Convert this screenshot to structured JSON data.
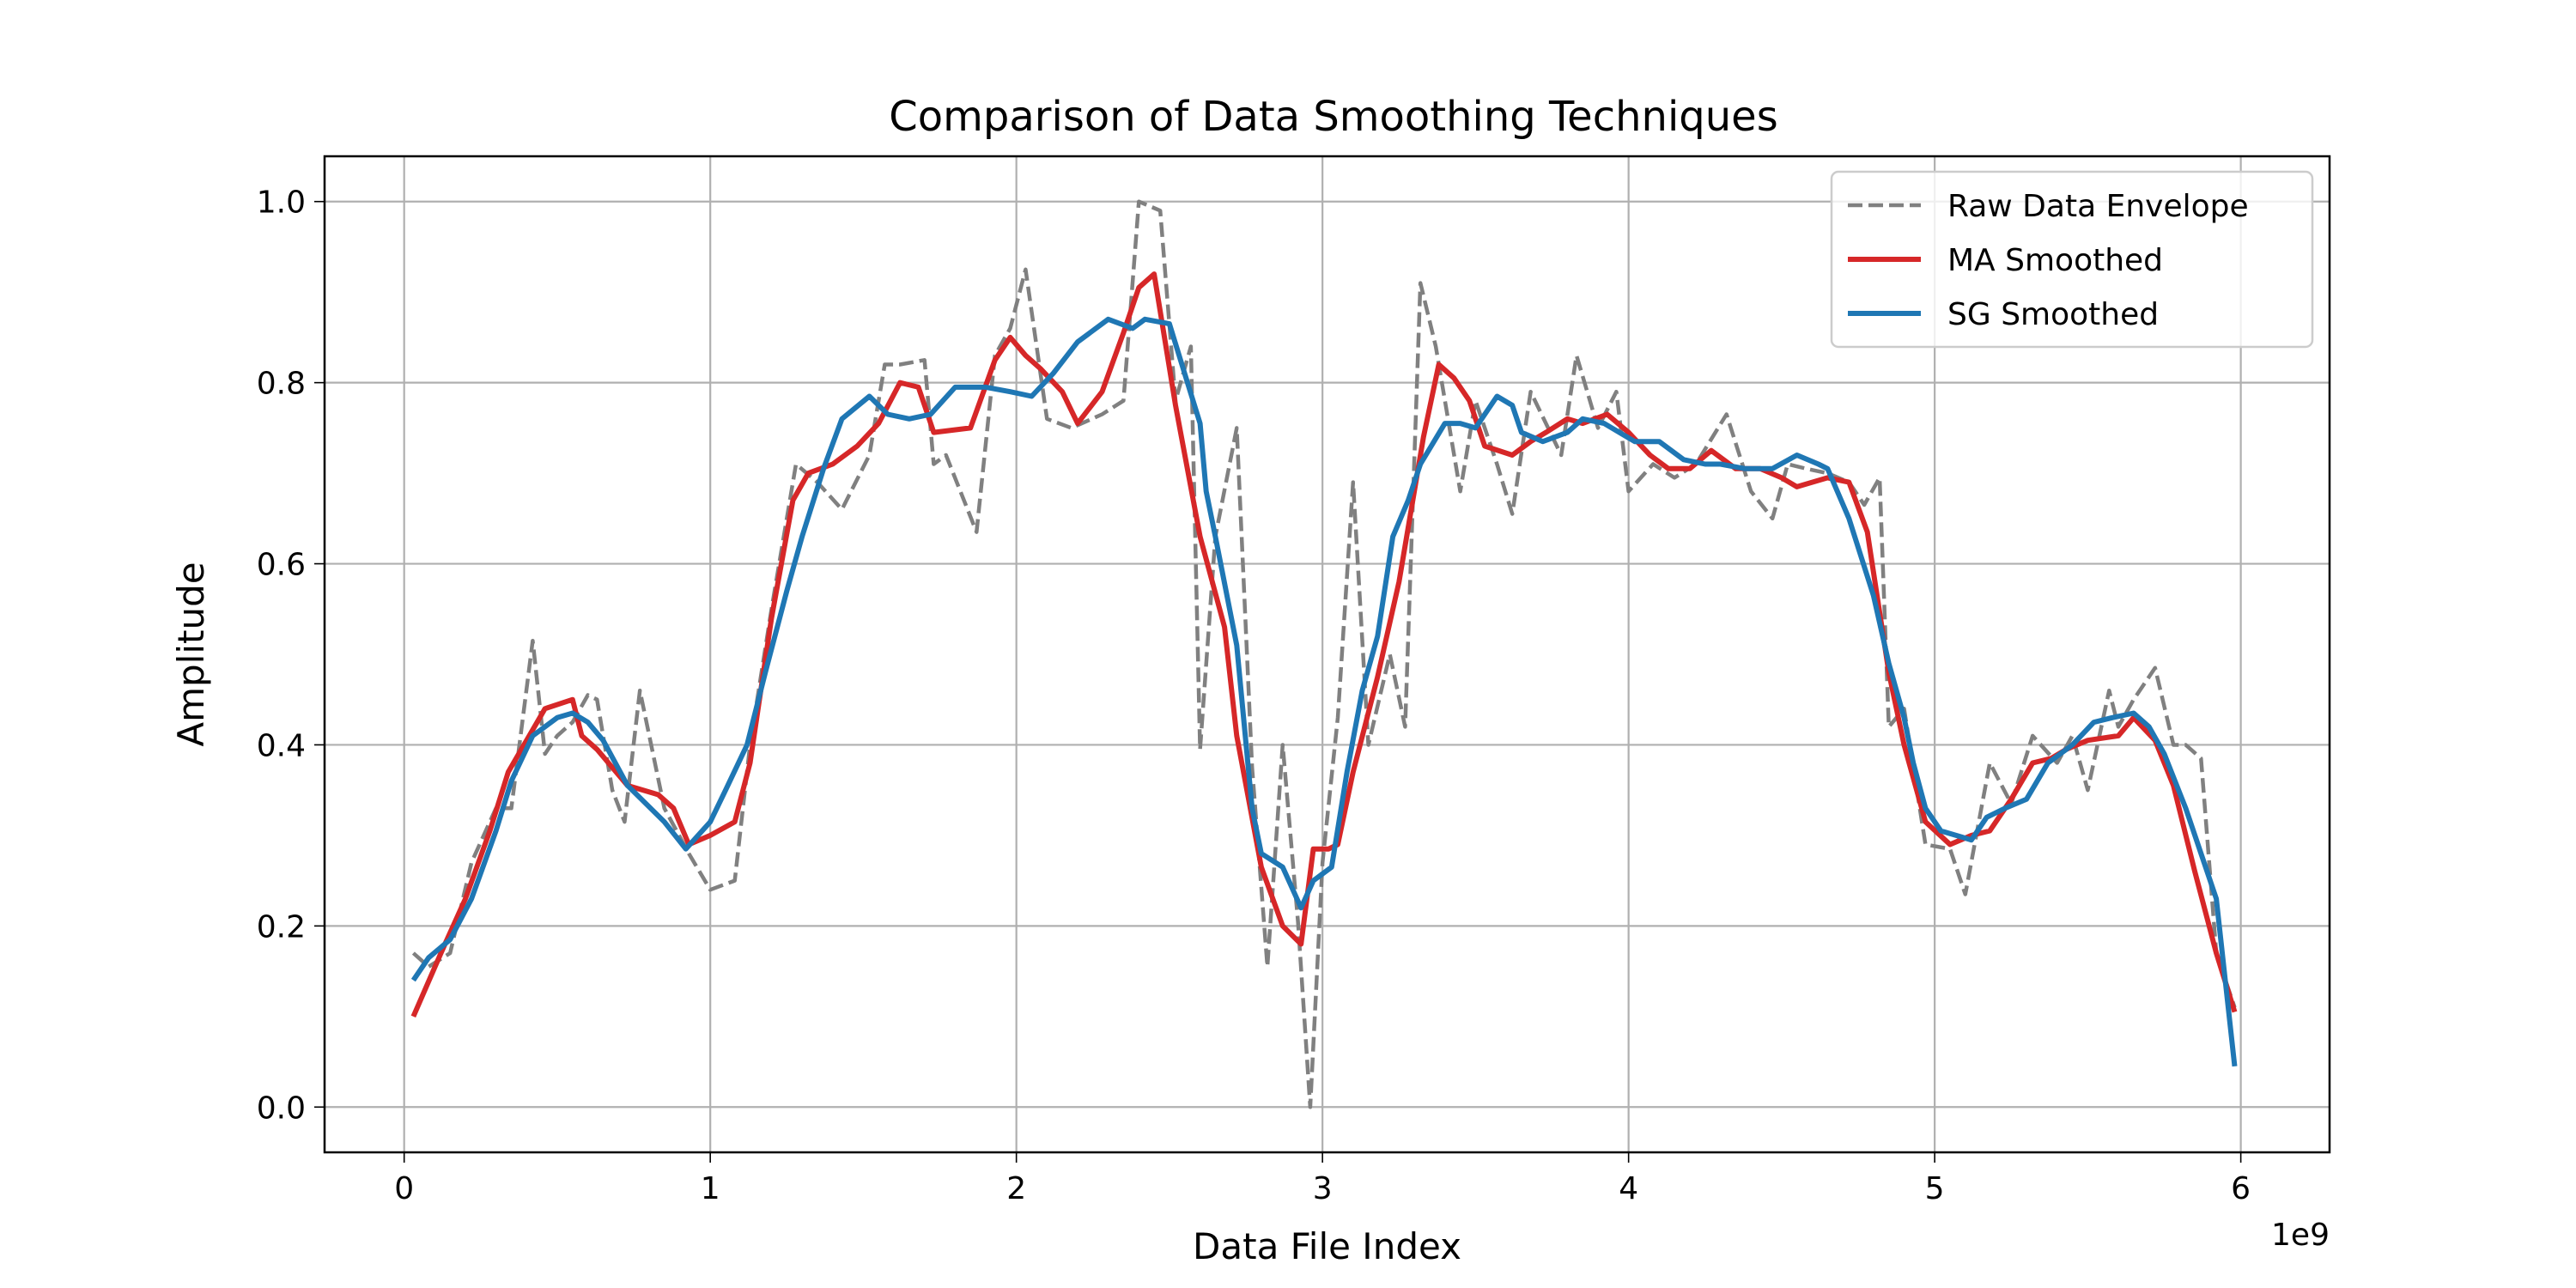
{
  "chart_data": {
    "type": "line",
    "title": "Comparison of Data Smoothing Techniques",
    "xlabel": "Data File Index",
    "ylabel": "Amplitude",
    "x_offset_label": "1e9",
    "xlim": [
      -0.26,
      6.29
    ],
    "ylim": [
      -0.05,
      1.05
    ],
    "x_ticks": [
      0,
      1,
      2,
      3,
      4,
      5,
      6
    ],
    "x_tick_labels": [
      "0",
      "1",
      "2",
      "3",
      "4",
      "5",
      "6"
    ],
    "y_ticks": [
      0.0,
      0.2,
      0.4,
      0.6,
      0.8,
      1.0
    ],
    "y_tick_labels": [
      "0.0",
      "0.2",
      "0.4",
      "0.6",
      "0.8",
      "1.0"
    ],
    "grid": true,
    "legend_position": "top-right",
    "series": [
      {
        "name": "Raw Data Envelope",
        "color": "#808080",
        "style": "dashed",
        "x": [
          0.03,
          0.08,
          0.15,
          0.22,
          0.3,
          0.35,
          0.42,
          0.46,
          0.5,
          0.55,
          0.6,
          0.63,
          0.68,
          0.72,
          0.77,
          0.85,
          0.93,
          1.0,
          1.08,
          1.13,
          1.2,
          1.28,
          1.35,
          1.43,
          1.52,
          1.57,
          1.62,
          1.7,
          1.73,
          1.77,
          1.87,
          1.93,
          1.98,
          2.03,
          2.1,
          2.18,
          2.28,
          2.35,
          2.4,
          2.47,
          2.52,
          2.57,
          2.6,
          2.65,
          2.72,
          2.77,
          2.82,
          2.87,
          2.92,
          2.96,
          3.0,
          3.05,
          3.1,
          3.15,
          3.22,
          3.27,
          3.32,
          3.37,
          3.45,
          3.5,
          3.57,
          3.62,
          3.68,
          3.78,
          3.83,
          3.9,
          3.96,
          4.0,
          4.08,
          4.15,
          4.22,
          4.32,
          4.4,
          4.47,
          4.52,
          4.58,
          4.65,
          4.72,
          4.77,
          4.82,
          4.85,
          4.9,
          4.97,
          5.05,
          5.1,
          5.18,
          5.25,
          5.32,
          5.4,
          5.45,
          5.5,
          5.57,
          5.6,
          5.65,
          5.72,
          5.78,
          5.82,
          5.87,
          5.92,
          5.98
        ],
        "y": [
          0.17,
          0.155,
          0.17,
          0.27,
          0.33,
          0.33,
          0.515,
          0.39,
          0.41,
          0.425,
          0.455,
          0.45,
          0.35,
          0.315,
          0.46,
          0.33,
          0.28,
          0.24,
          0.25,
          0.4,
          0.55,
          0.71,
          0.69,
          0.66,
          0.72,
          0.82,
          0.82,
          0.825,
          0.71,
          0.72,
          0.635,
          0.83,
          0.86,
          0.925,
          0.76,
          0.75,
          0.765,
          0.78,
          1.0,
          0.99,
          0.78,
          0.84,
          0.395,
          0.63,
          0.75,
          0.375,
          0.155,
          0.4,
          0.205,
          0.0,
          0.27,
          0.43,
          0.69,
          0.4,
          0.5,
          0.42,
          0.91,
          0.84,
          0.68,
          0.78,
          0.71,
          0.655,
          0.79,
          0.72,
          0.83,
          0.75,
          0.79,
          0.68,
          0.71,
          0.695,
          0.71,
          0.765,
          0.68,
          0.65,
          0.71,
          0.705,
          0.7,
          0.69,
          0.665,
          0.695,
          0.42,
          0.44,
          0.29,
          0.285,
          0.235,
          0.38,
          0.335,
          0.41,
          0.38,
          0.41,
          0.35,
          0.46,
          0.42,
          0.45,
          0.485,
          0.4,
          0.4,
          0.385,
          0.17,
          0.11
        ]
      },
      {
        "name": "MA Smoothed",
        "color": "#d62728",
        "style": "solid",
        "x": [
          0.03,
          0.12,
          0.2,
          0.28,
          0.34,
          0.46,
          0.55,
          0.58,
          0.63,
          0.73,
          0.83,
          0.88,
          0.93,
          1.0,
          1.08,
          1.13,
          1.2,
          1.27,
          1.32,
          1.4,
          1.48,
          1.55,
          1.62,
          1.68,
          1.73,
          1.85,
          1.93,
          1.98,
          2.03,
          2.08,
          2.15,
          2.2,
          2.28,
          2.35,
          2.4,
          2.45,
          2.52,
          2.6,
          2.68,
          2.72,
          2.8,
          2.87,
          2.93,
          2.97,
          3.02,
          3.05,
          3.1,
          3.18,
          3.25,
          3.33,
          3.38,
          3.43,
          3.48,
          3.53,
          3.62,
          3.68,
          3.73,
          3.8,
          3.85,
          3.93,
          4.0,
          4.07,
          4.13,
          4.2,
          4.27,
          4.35,
          4.43,
          4.5,
          4.55,
          4.6,
          4.65,
          4.72,
          4.78,
          4.85,
          4.9,
          4.97,
          5.05,
          5.12,
          5.18,
          5.25,
          5.32,
          5.38,
          5.43,
          5.5,
          5.6,
          5.65,
          5.72,
          5.78,
          5.85,
          5.92,
          5.98
        ],
        "y": [
          0.1,
          0.17,
          0.23,
          0.305,
          0.37,
          0.44,
          0.45,
          0.41,
          0.395,
          0.355,
          0.345,
          0.33,
          0.29,
          0.3,
          0.315,
          0.38,
          0.54,
          0.67,
          0.7,
          0.71,
          0.73,
          0.755,
          0.8,
          0.795,
          0.745,
          0.75,
          0.825,
          0.85,
          0.83,
          0.815,
          0.79,
          0.755,
          0.79,
          0.855,
          0.905,
          0.92,
          0.775,
          0.63,
          0.53,
          0.41,
          0.265,
          0.2,
          0.18,
          0.285,
          0.285,
          0.29,
          0.37,
          0.475,
          0.58,
          0.74,
          0.82,
          0.805,
          0.78,
          0.73,
          0.72,
          0.735,
          0.745,
          0.76,
          0.755,
          0.765,
          0.745,
          0.72,
          0.705,
          0.705,
          0.725,
          0.705,
          0.705,
          0.695,
          0.685,
          0.69,
          0.695,
          0.69,
          0.635,
          0.48,
          0.4,
          0.315,
          0.29,
          0.3,
          0.305,
          0.34,
          0.38,
          0.385,
          0.395,
          0.405,
          0.41,
          0.43,
          0.405,
          0.355,
          0.26,
          0.17,
          0.105
        ]
      },
      {
        "name": "SG Smoothed",
        "color": "#1f77b4",
        "style": "solid",
        "x": [
          0.03,
          0.08,
          0.15,
          0.22,
          0.3,
          0.35,
          0.42,
          0.5,
          0.55,
          0.6,
          0.65,
          0.73,
          0.85,
          0.92,
          1.0,
          1.05,
          1.12,
          1.18,
          1.25,
          1.3,
          1.37,
          1.43,
          1.52,
          1.58,
          1.65,
          1.72,
          1.8,
          1.9,
          1.98,
          2.05,
          2.12,
          2.2,
          2.3,
          2.38,
          2.42,
          2.5,
          2.55,
          2.6,
          2.62,
          2.65,
          2.72,
          2.77,
          2.8,
          2.87,
          2.93,
          2.97,
          3.03,
          3.08,
          3.13,
          3.18,
          3.23,
          3.28,
          3.32,
          3.4,
          3.45,
          3.5,
          3.57,
          3.62,
          3.65,
          3.72,
          3.8,
          3.85,
          3.92,
          4.02,
          4.1,
          4.18,
          4.25,
          4.3,
          4.38,
          4.43,
          4.47,
          4.55,
          4.62,
          4.65,
          4.72,
          4.8,
          4.85,
          4.9,
          4.93,
          4.97,
          5.02,
          5.07,
          5.12,
          5.17,
          5.23,
          5.3,
          5.37,
          5.45,
          5.52,
          5.58,
          5.65,
          5.7,
          5.75,
          5.82,
          5.87,
          5.92,
          5.98
        ],
        "y": [
          0.14,
          0.165,
          0.185,
          0.23,
          0.305,
          0.36,
          0.41,
          0.43,
          0.435,
          0.425,
          0.405,
          0.355,
          0.315,
          0.285,
          0.315,
          0.35,
          0.4,
          0.48,
          0.57,
          0.63,
          0.705,
          0.76,
          0.785,
          0.765,
          0.76,
          0.765,
          0.795,
          0.795,
          0.79,
          0.785,
          0.81,
          0.845,
          0.87,
          0.86,
          0.87,
          0.865,
          0.81,
          0.755,
          0.68,
          0.63,
          0.51,
          0.33,
          0.28,
          0.265,
          0.22,
          0.25,
          0.265,
          0.37,
          0.46,
          0.52,
          0.63,
          0.67,
          0.71,
          0.755,
          0.755,
          0.75,
          0.785,
          0.775,
          0.745,
          0.735,
          0.745,
          0.76,
          0.755,
          0.735,
          0.735,
          0.715,
          0.71,
          0.71,
          0.705,
          0.705,
          0.705,
          0.72,
          0.71,
          0.705,
          0.65,
          0.565,
          0.49,
          0.43,
          0.38,
          0.33,
          0.305,
          0.3,
          0.295,
          0.32,
          0.33,
          0.34,
          0.38,
          0.4,
          0.425,
          0.43,
          0.435,
          0.42,
          0.39,
          0.33,
          0.28,
          0.23,
          0.045
        ]
      }
    ]
  }
}
